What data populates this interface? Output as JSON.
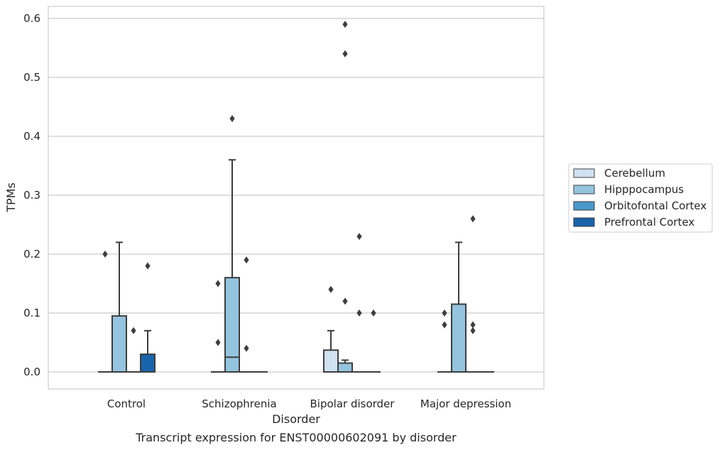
{
  "caption": "Transcript expression for ENST00000602091 by disorder",
  "chart_data": {
    "type": "box",
    "xlabel": "Disorder",
    "ylabel": "TPMs",
    "ylim": [
      -0.03,
      0.62
    ],
    "yticks": [
      "0.0",
      "0.1",
      "0.2",
      "0.3",
      "0.4",
      "0.5",
      "0.6"
    ],
    "grid": "horizontal",
    "legend_position": "right",
    "categories": [
      "Control",
      "Schizophrenia",
      "Bipolar disorder",
      "Major depression"
    ],
    "series": [
      {
        "name": "Cerebellum",
        "color": "#d0e1f2",
        "boxes": [
          {
            "q1": 0,
            "median": 0,
            "q3": 0,
            "whisker_low": 0,
            "whisker_high": 0,
            "outliers": [
              0.2
            ]
          },
          {
            "q1": 0,
            "median": 0,
            "q3": 0,
            "whisker_low": 0,
            "whisker_high": 0,
            "outliers": [
              0.05,
              0.15
            ]
          },
          {
            "q1": 0,
            "median": 0,
            "q3": 0.037,
            "whisker_low": 0,
            "whisker_high": 0.07,
            "outliers": [
              0.14
            ]
          },
          {
            "q1": 0,
            "median": 0,
            "q3": 0,
            "whisker_low": 0,
            "whisker_high": 0,
            "outliers": [
              0.08,
              0.1
            ]
          }
        ]
      },
      {
        "name": "Hipppocampus",
        "color": "#94c4df",
        "boxes": [
          {
            "q1": 0,
            "median": 0,
            "q3": 0.095,
            "whisker_low": 0,
            "whisker_high": 0.22,
            "outliers": []
          },
          {
            "q1": 0,
            "median": 0.025,
            "q3": 0.16,
            "whisker_low": 0,
            "whisker_high": 0.36,
            "outliers": [
              0.43
            ]
          },
          {
            "q1": 0,
            "median": 0,
            "q3": 0.015,
            "whisker_low": 0,
            "whisker_high": 0.02,
            "outliers": [
              0.12,
              0.54,
              0.59
            ]
          },
          {
            "q1": 0,
            "median": 0,
            "q3": 0.115,
            "whisker_low": 0,
            "whisker_high": 0.22,
            "outliers": []
          }
        ]
      },
      {
        "name": "Orbitofontal Cortex",
        "color": "#4a98c9",
        "boxes": [
          {
            "q1": 0,
            "median": 0,
            "q3": 0,
            "whisker_low": 0,
            "whisker_high": 0,
            "outliers": [
              0.07
            ]
          },
          {
            "q1": 0,
            "median": 0,
            "q3": 0,
            "whisker_low": 0,
            "whisker_high": 0,
            "outliers": [
              0.04,
              0.19
            ]
          },
          {
            "q1": 0,
            "median": 0,
            "q3": 0,
            "whisker_low": 0,
            "whisker_high": 0,
            "outliers": [
              0.1,
              0.23
            ]
          },
          {
            "q1": 0,
            "median": 0,
            "q3": 0,
            "whisker_low": 0,
            "whisker_high": 0,
            "outliers": [
              0.07,
              0.08,
              0.26
            ]
          }
        ]
      },
      {
        "name": "Prefrontal Cortex",
        "color": "#1764ab",
        "boxes": [
          {
            "q1": 0,
            "median": 0,
            "q3": 0.03,
            "whisker_low": 0,
            "whisker_high": 0.07,
            "outliers": [
              0.18
            ]
          },
          {
            "q1": 0,
            "median": 0,
            "q3": 0,
            "whisker_low": 0,
            "whisker_high": 0,
            "outliers": []
          },
          {
            "q1": 0,
            "median": 0,
            "q3": 0,
            "whisker_low": 0,
            "whisker_high": 0,
            "outliers": [
              0.1
            ]
          },
          {
            "q1": 0,
            "median": 0,
            "q3": 0,
            "whisker_low": 0,
            "whisker_high": 0,
            "outliers": []
          }
        ]
      }
    ]
  }
}
